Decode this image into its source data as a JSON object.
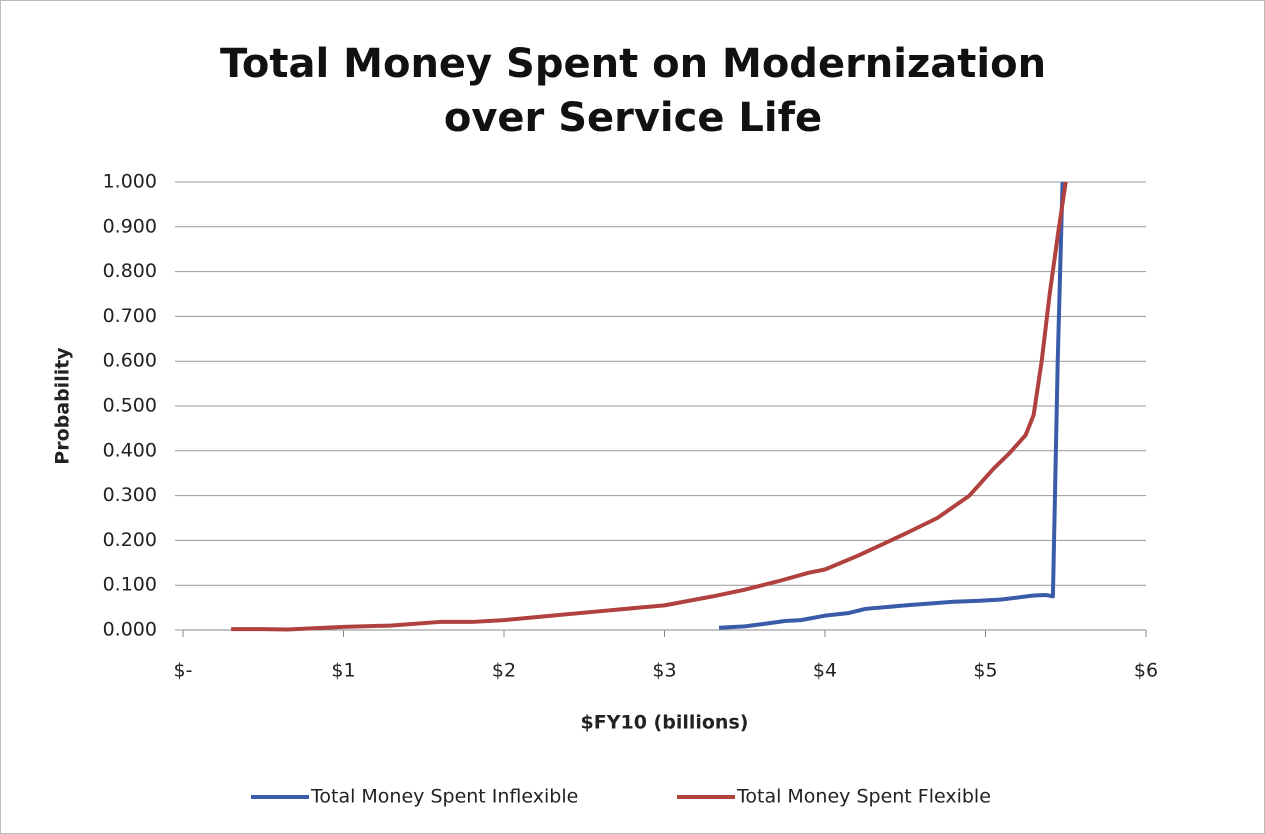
{
  "chart_data": {
    "type": "line",
    "title": "Total Money Spent on Modernization over Service Life",
    "x_label": "$FY10 (billions)",
    "y_label": "Probability",
    "xlim": [
      0,
      6
    ],
    "xticks": [
      {
        "value": 0,
        "label": "$-"
      },
      {
        "value": 1,
        "label": "$1"
      },
      {
        "value": 2,
        "label": "$2"
      },
      {
        "value": 3,
        "label": "$3"
      },
      {
        "value": 4,
        "label": "$4"
      },
      {
        "value": 5,
        "label": "$5"
      },
      {
        "value": 6,
        "label": "$6"
      }
    ],
    "ylim": [
      0,
      1
    ],
    "yticks": [
      {
        "value": 0,
        "label": "0.000"
      },
      {
        "value": 0.1,
        "label": "0.100"
      },
      {
        "value": 0.2,
        "label": "0.200"
      },
      {
        "value": 0.3,
        "label": "0.300"
      },
      {
        "value": 0.4,
        "label": "0.400"
      },
      {
        "value": 0.5,
        "label": "0.500"
      },
      {
        "value": 0.6,
        "label": "0.600"
      },
      {
        "value": 0.7,
        "label": "0.700"
      },
      {
        "value": 0.8,
        "label": "0.800"
      },
      {
        "value": 0.9,
        "label": "0.900"
      },
      {
        "value": 1,
        "label": "1.000"
      }
    ],
    "grid": true,
    "legend": "bottom",
    "series": [
      {
        "name": "Total Money Spent Inflexible",
        "color": "#3a5ba8",
        "x": [
          3.34,
          3.5,
          3.65,
          3.75,
          3.85,
          4.0,
          4.15,
          4.25,
          4.5,
          4.8,
          4.95,
          5.1,
          5.3,
          5.38,
          5.42,
          5.45,
          5.48
        ],
        "values": [
          0.005,
          0.008,
          0.015,
          0.02,
          0.022,
          0.032,
          0.038,
          0.047,
          0.055,
          0.063,
          0.065,
          0.068,
          0.077,
          0.078,
          0.075,
          0.6,
          1.0
        ]
      },
      {
        "name": "Total Money Spent Flexible",
        "color": "#b0413e",
        "x": [
          0.3,
          0.5,
          0.65,
          1.0,
          1.3,
          1.6,
          1.8,
          2.0,
          2.3,
          2.6,
          3.0,
          3.3,
          3.5,
          3.7,
          3.9,
          4.0,
          4.2,
          4.5,
          4.7,
          4.9,
          5.05,
          5.15,
          5.25,
          5.3,
          5.35,
          5.4,
          5.45,
          5.5
        ],
        "values": [
          0.002,
          0.002,
          0.001,
          0.007,
          0.01,
          0.018,
          0.018,
          0.022,
          0.032,
          0.042,
          0.055,
          0.075,
          0.09,
          0.108,
          0.128,
          0.135,
          0.165,
          0.215,
          0.25,
          0.3,
          0.36,
          0.395,
          0.435,
          0.48,
          0.6,
          0.75,
          0.88,
          1.0
        ]
      }
    ]
  }
}
